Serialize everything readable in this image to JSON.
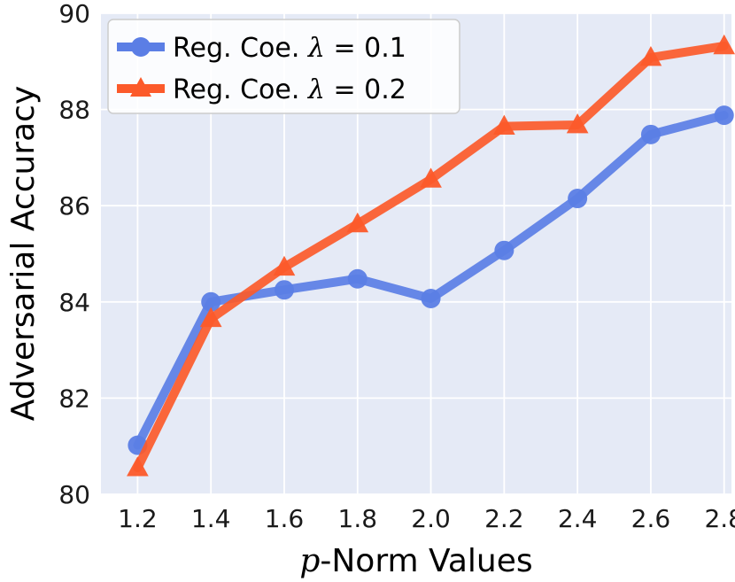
{
  "chart_data": {
    "type": "line",
    "title": "",
    "xlabel_italic": "p",
    "xlabel_rest": "-Norm Values",
    "ylabel": "Adversarial Accuracy",
    "x": [
      1.2,
      1.4,
      1.6,
      1.8,
      2.0,
      2.2,
      2.4,
      2.6,
      2.8
    ],
    "x_tick_labels": [
      "1.2",
      "1.4",
      "1.6",
      "1.8",
      "2.0",
      "2.2",
      "2.4",
      "2.6",
      "2.8"
    ],
    "xlim": [
      1.1,
      2.82
    ],
    "ylim": [
      80,
      90
    ],
    "y_ticks": [
      80,
      82,
      84,
      86,
      88,
      90
    ],
    "y_tick_labels": [
      "80",
      "82",
      "84",
      "86",
      "88",
      "90"
    ],
    "grid": true,
    "legend_position": "top-left",
    "series": [
      {
        "name": "Reg. Coe. λ = 0.1",
        "legend_prefix": "Reg. Coe. ",
        "legend_symbol": "λ",
        "legend_suffix": " = 0.1",
        "marker": "circle",
        "color": "#5b7ee5",
        "values": [
          81.02,
          84.0,
          84.25,
          84.48,
          84.07,
          85.07,
          86.15,
          87.48,
          87.88
        ]
      },
      {
        "name": "Reg. Coe. λ = 0.2",
        "legend_prefix": "Reg. Coe. ",
        "legend_symbol": "λ",
        "legend_suffix": " = 0.2",
        "marker": "triangle",
        "color": "#fc5a2a",
        "values": [
          80.55,
          83.65,
          84.72,
          85.62,
          86.55,
          87.65,
          87.68,
          89.08,
          89.32
        ]
      }
    ]
  },
  "colors": {
    "plot_background": "#e5eaf6",
    "grid": "#ffffff"
  }
}
